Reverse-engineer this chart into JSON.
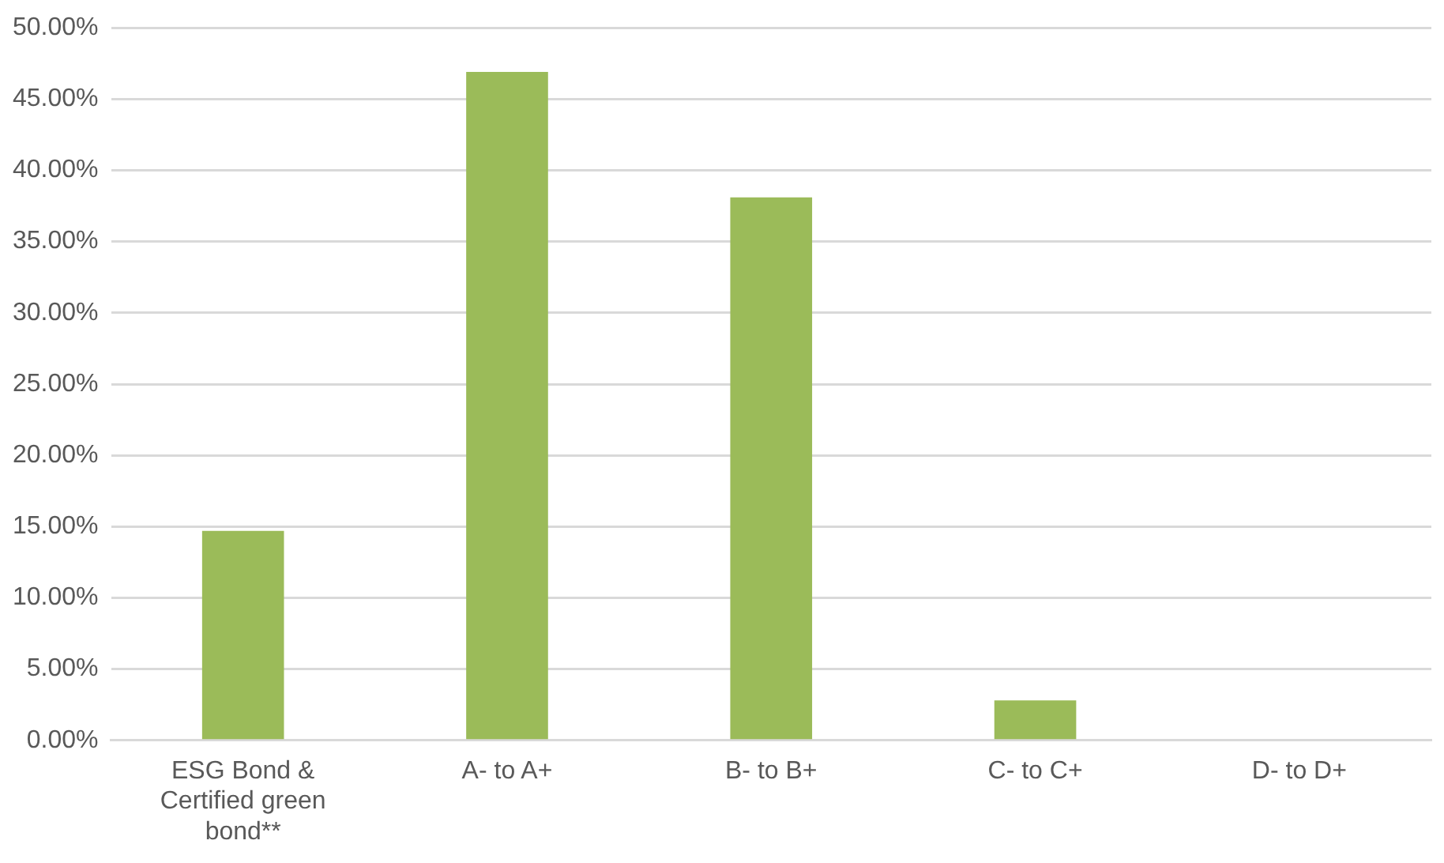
{
  "chart_data": {
    "type": "bar",
    "categories": [
      "ESG Bond & Certified green bond**",
      "A- to A+",
      "B- to B+",
      "C- to C+",
      "D- to D+"
    ],
    "values": [
      14.7,
      46.9,
      38.1,
      2.8,
      0
    ],
    "color": "#9bbb59",
    "ylim": [
      0,
      50
    ],
    "yticks": [
      {
        "value": 0,
        "label": "0.00%"
      },
      {
        "value": 5,
        "label": "5.00%"
      },
      {
        "value": 10,
        "label": "10.00%"
      },
      {
        "value": 15,
        "label": "15.00%"
      },
      {
        "value": 20,
        "label": "20.00%"
      },
      {
        "value": 25,
        "label": "25.00%"
      },
      {
        "value": 30,
        "label": "30.00%"
      },
      {
        "value": 35,
        "label": "35.00%"
      },
      {
        "value": 40,
        "label": "40.00%"
      },
      {
        "value": 45,
        "label": "45.00%"
      },
      {
        "value": 50,
        "label": "50.00%"
      }
    ],
    "grid": "y",
    "legend": false
  }
}
